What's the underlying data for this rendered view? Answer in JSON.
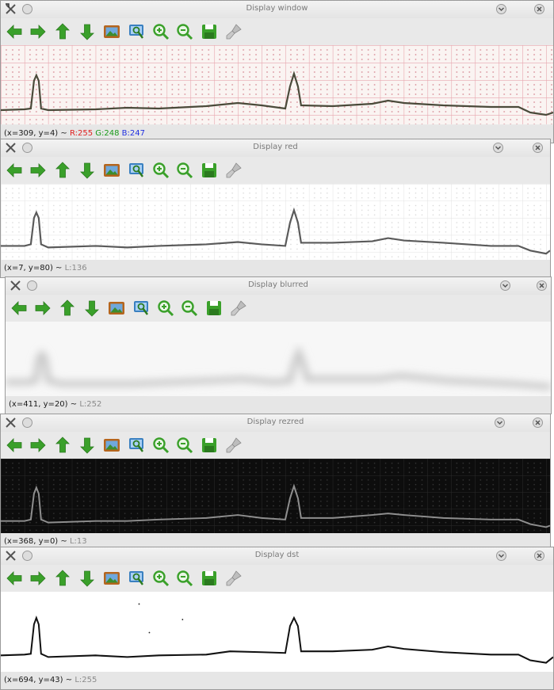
{
  "windows": [
    {
      "id": "window",
      "title": "Display window",
      "status": {
        "coords": "(x=309, y=4)",
        "sep": " ~ ",
        "r": "R:255",
        "g": "G:248",
        "b": "B:247"
      }
    },
    {
      "id": "red",
      "title": "Display red",
      "status": {
        "coords": "(x=7, y=80)",
        "sep": " ~ ",
        "level": "L:136"
      }
    },
    {
      "id": "blurred",
      "title": "Display blurred",
      "status": {
        "coords": "(x=411, y=20)",
        "sep": " ~ ",
        "level": "L:252"
      }
    },
    {
      "id": "rezred",
      "title": "Display rezred",
      "status": {
        "coords": "(x=368, y=0)",
        "sep": " ~ ",
        "level": "L:13"
      }
    },
    {
      "id": "dst",
      "title": "Display dst",
      "status": {
        "coords": "(x=694, y=43)",
        "sep": " ~ ",
        "level": "L:255"
      }
    }
  ],
  "toolbar_icons": [
    "arrow-left-icon",
    "arrow-right-icon",
    "arrow-up-icon",
    "arrow-down-icon",
    "image-icon",
    "zoom-fit-icon",
    "zoom-in-icon",
    "zoom-out-icon",
    "save-icon",
    "clear-brush-icon"
  ],
  "colors": {
    "arrow": "#3aa02a",
    "status_r": "#e02020",
    "status_g": "#1a9a1a",
    "status_b": "#2030e0"
  }
}
